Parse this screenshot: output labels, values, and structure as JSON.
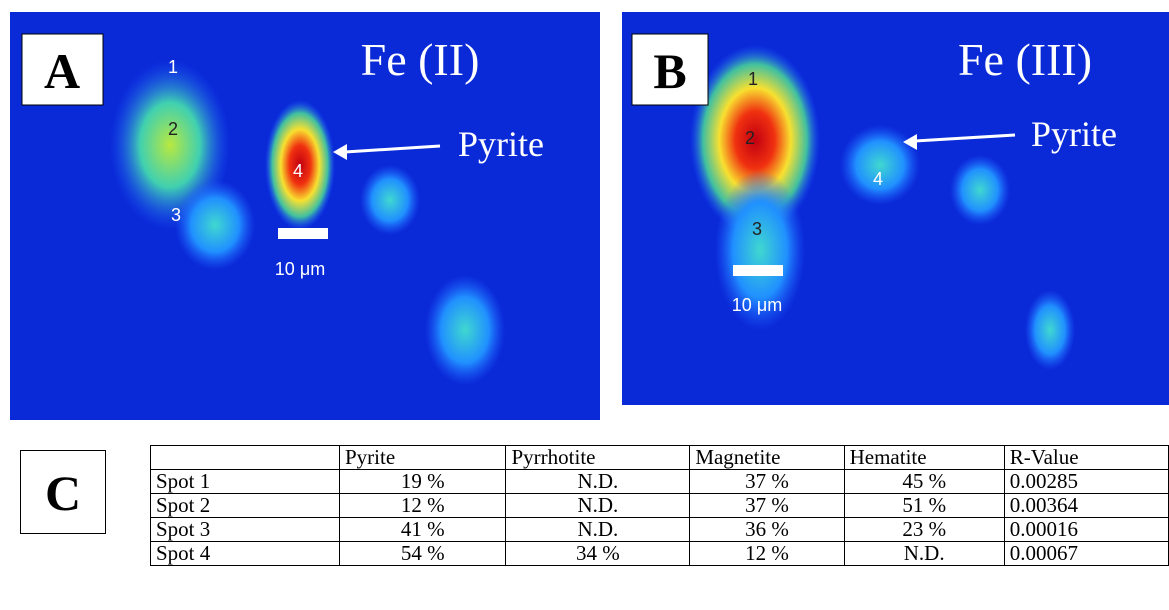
{
  "panels": [
    {
      "label": "A",
      "title": "Fe (II)",
      "annotation": "Pyrite",
      "spots": [
        "1",
        "2",
        "3",
        "4"
      ],
      "scale_bar": "10 μm"
    },
    {
      "label": "B",
      "title": "Fe (III)",
      "annotation": "Pyrite",
      "spots": [
        "1",
        "2",
        "3",
        "4"
      ],
      "scale_bar": "10 μm"
    }
  ],
  "table": {
    "label": "C",
    "header": [
      "Pyrite",
      "Pyrrhotite",
      "Magnetite",
      "Hematite",
      "R-Value"
    ],
    "rows": [
      [
        "Spot 1",
        "19 %",
        "N.D.",
        "37 %",
        "45 %",
        "0.00285"
      ],
      [
        "Spot 2",
        "12 %",
        "N.D.",
        "37 %",
        "51 %",
        "0.00364"
      ],
      [
        "Spot 3",
        "41 %",
        "N.D.",
        "36 %",
        "23 %",
        "0.00016"
      ],
      [
        "Spot 4",
        "54 %",
        "34 %",
        "12 %",
        "N.D.",
        "0.00067"
      ]
    ]
  }
}
